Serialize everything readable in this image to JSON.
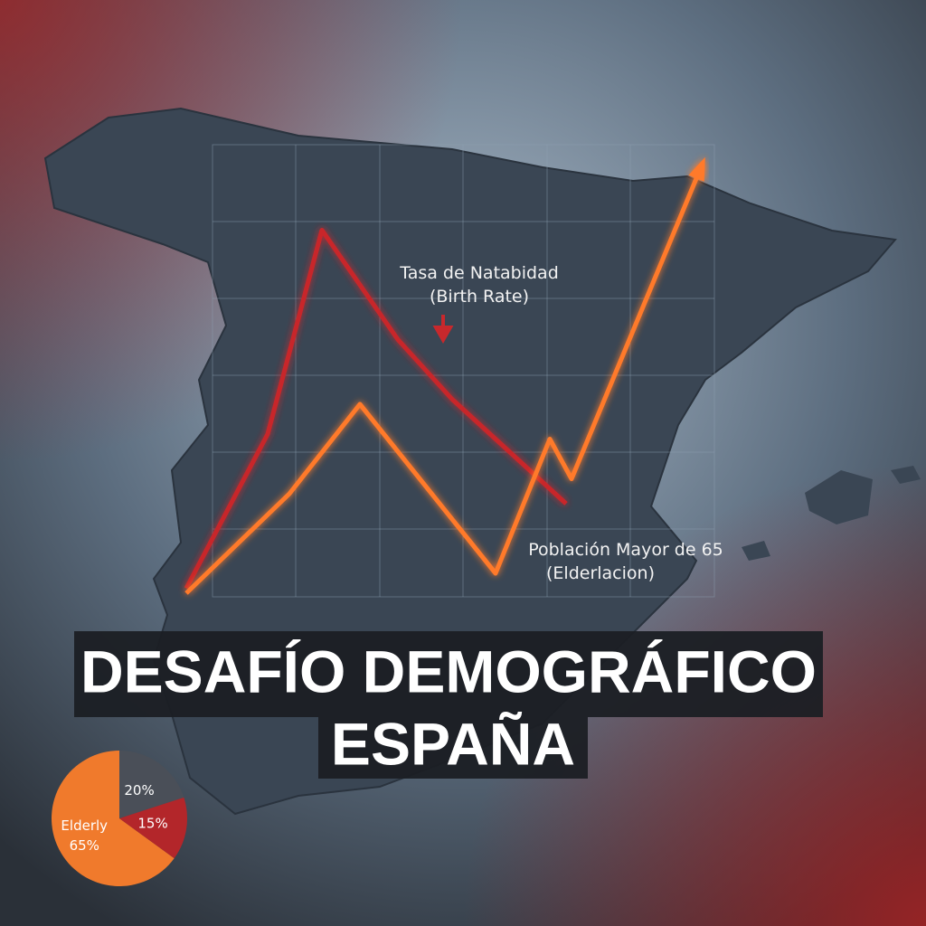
{
  "title": [
    "DESAFÍO DEMOGRÁFICO",
    "ESPAÑA"
  ],
  "chart_data": [
    {
      "type": "line",
      "annotations": [
        "Tasa de Natabidad",
        "(Birth Rate)",
        "Población Mayor de 65",
        "(Elderlacion)"
      ],
      "xlim": [
        0,
        100
      ],
      "ylim": [
        0,
        100
      ],
      "series": [
        {
          "color": "#c8282c",
          "x": [
            1,
            16,
            26,
            40,
            50,
            71
          ],
          "values": [
            9,
            40,
            81,
            59,
            47,
            26
          ]
        },
        {
          "color": "#ff7a2a",
          "x": [
            1,
            20,
            33,
            58,
            68,
            72,
            96
          ],
          "values": [
            8,
            28,
            46,
            12,
            39,
            31,
            94
          ]
        }
      ]
    },
    {
      "type": "pie",
      "categories": [
        "Elderly",
        null,
        null
      ],
      "values": [
        65,
        20,
        15
      ],
      "value_labels": [
        "65%",
        "20%",
        "15%"
      ],
      "colors": [
        "#f07a2c",
        "#4a4f58",
        "#b3262a"
      ]
    }
  ]
}
